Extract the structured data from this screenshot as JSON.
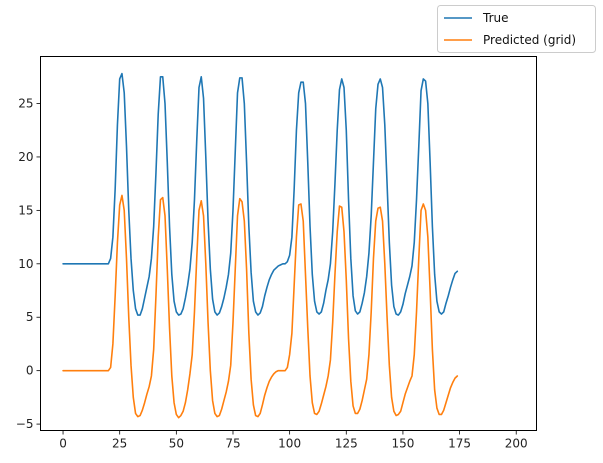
{
  "chart_data": {
    "type": "line",
    "x_step": 1,
    "x_start": 0,
    "xlim": [
      -9.95,
      208.95
    ],
    "ylim": [
      -5.6,
      29.4
    ],
    "xticks": [
      0,
      25,
      50,
      75,
      100,
      125,
      150,
      175,
      200
    ],
    "yticks": [
      -5,
      0,
      5,
      10,
      15,
      20,
      25
    ],
    "grid": false,
    "legend_position": "top-right (outside, above plot)",
    "legend": [
      {
        "label": "True",
        "color": "#1f77b4"
      },
      {
        "label": "Predicted (grid)",
        "color": "#ff7f0e"
      }
    ],
    "series": [
      {
        "name": "True",
        "color": "#1f77b4",
        "values": [
          10,
          10,
          10,
          10,
          10,
          10,
          10,
          10,
          10,
          10,
          10,
          10,
          10,
          10,
          10,
          10,
          10,
          10,
          10,
          10,
          10,
          10.5,
          12.5,
          17,
          23,
          27.3,
          27.8,
          26,
          21,
          15,
          10.5,
          7.5,
          5.8,
          5.2,
          5.2,
          5.8,
          6.8,
          7.8,
          8.8,
          10.5,
          13.5,
          18.5,
          24,
          27.5,
          27.5,
          25,
          19.5,
          13.5,
          9,
          6.5,
          5.5,
          5.2,
          5.3,
          5.8,
          6.8,
          8,
          9.5,
          12,
          16,
          21.5,
          26.5,
          27.5,
          25.5,
          20,
          14,
          9.5,
          6.7,
          5.5,
          5.2,
          5.4,
          6,
          6.8,
          7.8,
          9,
          11,
          15,
          20.5,
          26,
          27.4,
          27.4,
          25,
          19.5,
          13.5,
          9.2,
          6.5,
          5.5,
          5.2,
          5.4,
          6,
          7,
          7.8,
          8.5,
          9,
          9.4,
          9.6,
          9.8,
          9.9,
          10,
          10,
          10.2,
          10.8,
          12.5,
          17,
          22.5,
          26,
          27,
          27,
          25,
          19.5,
          13.5,
          9,
          6.5,
          5.5,
          5.3,
          5.5,
          6.3,
          7.5,
          8.5,
          10,
          13,
          17.5,
          22.5,
          26.3,
          27.3,
          26.5,
          22.5,
          16,
          10.5,
          7,
          5.6,
          5.3,
          5.5,
          6.3,
          7.3,
          8.8,
          11,
          14.5,
          19.5,
          24.5,
          26.8,
          27.3,
          26.5,
          23,
          17.5,
          12,
          8,
          6,
          5.3,
          5.2,
          5.5,
          6.2,
          7.2,
          8,
          8.8,
          9.8,
          12,
          16,
          21,
          26.2,
          27.3,
          27.1,
          25,
          19.5,
          13.5,
          9,
          6.5,
          5.5,
          5.3,
          5.5,
          6.3,
          7,
          7.8,
          8.5,
          9.1,
          9.3
        ]
      },
      {
        "name": "Predicted (grid)",
        "color": "#ff7f0e",
        "values": [
          0,
          0,
          0,
          0,
          0,
          0,
          0,
          0,
          0,
          0,
          0,
          0,
          0,
          0,
          0,
          0,
          0,
          0,
          0,
          0,
          0,
          0.3,
          2.5,
          7,
          12,
          15.5,
          16.4,
          15,
          10.5,
          5,
          0.5,
          -2.5,
          -4,
          -4.3,
          -4.2,
          -3.7,
          -3,
          -2.2,
          -1.5,
          -0.5,
          2,
          7,
          12.5,
          16,
          16.2,
          14.5,
          9.5,
          4,
          -0.5,
          -3,
          -4.1,
          -4.4,
          -4.2,
          -3.8,
          -3,
          -1.8,
          -0.3,
          1.5,
          5.5,
          10.5,
          15,
          15.9,
          14.5,
          10,
          4.5,
          0,
          -2.8,
          -4,
          -4.3,
          -4.2,
          -3.6,
          -2.8,
          -2,
          -1,
          0.5,
          4.5,
          9.5,
          14.5,
          16.1,
          15.8,
          14,
          9.5,
          3.5,
          -0.8,
          -3.2,
          -4.2,
          -4.3,
          -4,
          -3.2,
          -2.3,
          -1.6,
          -1,
          -0.6,
          -0.3,
          -0.1,
          0,
          0,
          0,
          0,
          0.3,
          1.5,
          3.5,
          8,
          12.5,
          15.5,
          15.6,
          14,
          9,
          4,
          -0.5,
          -3,
          -4,
          -4.1,
          -3.8,
          -3.1,
          -2.3,
          -1.5,
          -0.5,
          1,
          4.5,
          9,
          13,
          15.4,
          15.3,
          13,
          8.5,
          3,
          -1,
          -3.3,
          -4,
          -4,
          -3.6,
          -2.8,
          -1.8,
          -0.8,
          1.5,
          5.5,
          10.5,
          14,
          15.2,
          15.3,
          14,
          10,
          5,
          0.5,
          -2.5,
          -3.8,
          -4.2,
          -4.1,
          -3.8,
          -3,
          -2.2,
          -1.6,
          -1,
          -0.5,
          1.5,
          5.5,
          10.5,
          15,
          15.6,
          15,
          12.5,
          7.5,
          2,
          -1.8,
          -3.5,
          -4.1,
          -4.1,
          -3.7,
          -3,
          -2.3,
          -1.6,
          -1.1,
          -0.7,
          -0.5
        ]
      }
    ]
  }
}
